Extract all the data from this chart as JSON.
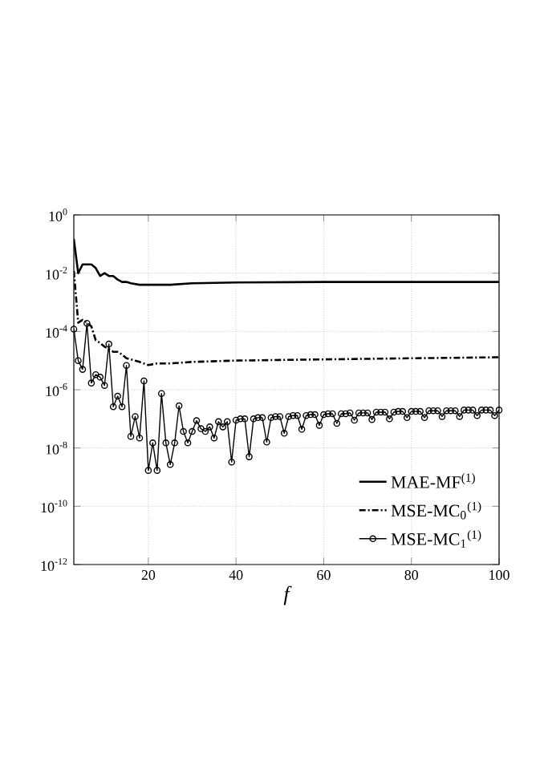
{
  "chart_data": {
    "type": "line",
    "xlabel": "f",
    "xlim": [
      3,
      100
    ],
    "xticks": [
      20,
      40,
      60,
      80,
      100
    ],
    "ylim": [
      1e-12,
      1
    ],
    "log": "y",
    "grid": true,
    "legend": "bottom right",
    "yticks": [
      {
        "value": 1e-12,
        "label": "10$^{-12}$"
      },
      {
        "value": 1e-10,
        "label": "10$^{-10}$"
      },
      {
        "value": 1e-08,
        "label": "10$^{-8}$"
      },
      {
        "value": 1e-06,
        "label": "10$^{-6}$"
      },
      {
        "value": 0.0001,
        "label": "10$^{-4}$"
      },
      {
        "value": 0.01,
        "label": "10$^{-2}$"
      },
      {
        "value": 1,
        "label": "10$^{0}$"
      }
    ],
    "series": [
      {
        "name": "MAE-MF$^{(1)}$",
        "color": "#000000",
        "line_style": "solid",
        "marker": "none",
        "x": [
          3,
          4,
          5,
          6,
          7,
          8,
          9,
          10,
          11,
          12,
          13,
          14,
          15,
          16,
          18,
          20,
          25,
          30,
          40,
          60,
          80,
          100
        ],
        "values": [
          0.15,
          0.01,
          0.02,
          0.02,
          0.02,
          0.015,
          0.008,
          0.01,
          0.008,
          0.008,
          0.006,
          0.005,
          0.005,
          0.0045,
          0.004,
          0.004,
          0.004,
          0.0045,
          0.0048,
          0.005,
          0.005,
          0.005
        ]
      },
      {
        "name": "MSE-MC$_{0}$$^{(1)}$",
        "color": "#000000",
        "line_style": "dashdot",
        "marker": "none",
        "x": [
          3,
          4,
          5,
          6,
          7,
          8,
          9,
          10,
          11,
          12,
          13,
          14,
          15,
          16,
          17,
          18,
          20,
          22,
          25,
          30,
          40,
          60,
          80,
          100
        ],
        "values": [
          0.012,
          0.0002,
          0.00025,
          0.0002,
          0.00015,
          5e-05,
          4e-05,
          3e-05,
          2.5e-05,
          2e-05,
          2e-05,
          1.6e-05,
          1.2e-05,
          1.1e-05,
          1e-05,
          9e-06,
          7e-06,
          8e-06,
          8e-06,
          9e-06,
          1e-05,
          1.1e-05,
          1.2e-05,
          1.3e-05
        ]
      },
      {
        "name": "MSE-MC$_{1}$$^{(1)}$",
        "color": "#000000",
        "line_style": "solid",
        "marker": "circle",
        "x": [
          3,
          4,
          5,
          6,
          7,
          8,
          9,
          10,
          11,
          12,
          13,
          14,
          15,
          16,
          17,
          18,
          19,
          20,
          21,
          22,
          23,
          24,
          25,
          26,
          27,
          28,
          29,
          30,
          31,
          32,
          33,
          34,
          35,
          36,
          37,
          38,
          39,
          40,
          41,
          42,
          43,
          44,
          45,
          46,
          47,
          48,
          49,
          50,
          51,
          52,
          53,
          54,
          55,
          56,
          57,
          58,
          59,
          60,
          61,
          62,
          63,
          64,
          65,
          66,
          67,
          68,
          69,
          70,
          71,
          72,
          73,
          74,
          75,
          76,
          77,
          78,
          79,
          80,
          81,
          82,
          83,
          84,
          85,
          86,
          87,
          88,
          89,
          90,
          91,
          92,
          93,
          94,
          95,
          96,
          97,
          98,
          99,
          100
        ],
        "values": [
          0.00012,
          1e-05,
          5e-06,
          0.00019,
          1.7e-06,
          3.3e-06,
          2.7e-06,
          1.4e-06,
          3.7e-05,
          2.6e-07,
          6e-07,
          2.6e-07,
          6.8e-06,
          2.5e-08,
          1.2e-07,
          2.2e-08,
          2e-06,
          1.7e-09,
          1.5e-08,
          1.7e-09,
          7.4e-07,
          1.5e-08,
          2.7e-09,
          1.5e-08,
          2.8e-07,
          3.7e-08,
          1.5e-08,
          3.7e-08,
          8.7e-08,
          4.6e-08,
          3.7e-08,
          5.3e-08,
          2.2e-08,
          8e-08,
          5.3e-08,
          8e-08,
          3.3e-09,
          9e-08,
          1e-07,
          1e-07,
          5e-09,
          1e-07,
          1.1e-07,
          1.1e-07,
          1.6e-08,
          1.1e-07,
          1.2e-07,
          1.2e-07,
          3.2e-08,
          1.2e-07,
          1.3e-07,
          1.3e-07,
          4.4e-08,
          1.3e-07,
          1.4e-07,
          1.4e-07,
          6e-08,
          1.4e-07,
          1.5e-07,
          1.5e-07,
          7e-08,
          1.5e-07,
          1.5e-07,
          1.6e-07,
          9e-08,
          1.6e-07,
          1.6e-07,
          1.6e-07,
          9.5e-08,
          1.7e-07,
          1.7e-07,
          1.7e-07,
          1e-07,
          1.7e-07,
          1.8e-07,
          1.8e-07,
          1.1e-07,
          1.8e-07,
          1.8e-07,
          1.8e-07,
          1.1e-07,
          1.9e-07,
          1.9e-07,
          1.9e-07,
          1.2e-07,
          1.9e-07,
          1.9e-07,
          1.9e-07,
          1.2e-07,
          2e-07,
          2e-07,
          2e-07,
          1.3e-07,
          2e-07,
          2e-07,
          2e-07,
          1.3e-07,
          2e-07
        ]
      }
    ]
  }
}
